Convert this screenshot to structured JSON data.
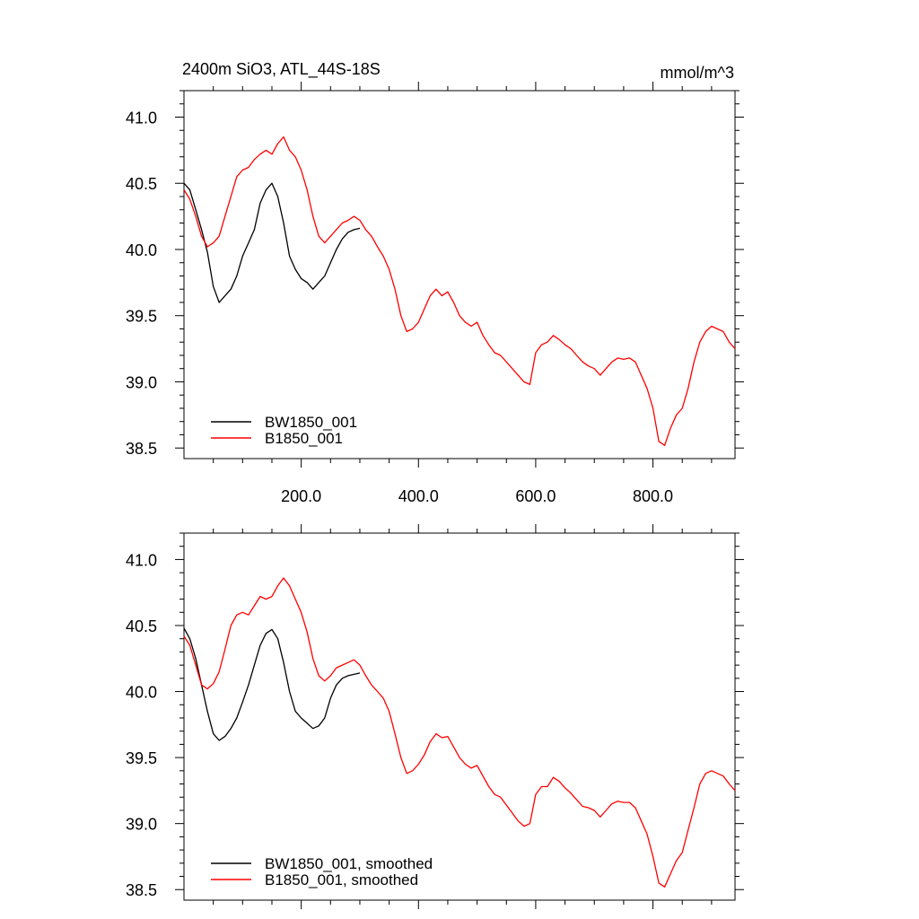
{
  "colors": {
    "series_0": "#000000",
    "series_1": "#ff0000"
  },
  "chart_data": [
    {
      "type": "line",
      "title": "2400m SiO3, ATL_44S-18S",
      "units": "mmol/m^3",
      "xlim": [
        0,
        940
      ],
      "ylim": [
        38.42,
        41.2
      ],
      "xticks": [
        200,
        400,
        600,
        800
      ],
      "xtick_labels": [
        "200.0",
        "400.0",
        "600.0",
        "800.0"
      ],
      "yticks": [
        38.5,
        39.0,
        39.5,
        40.0,
        40.5,
        41.0
      ],
      "ytick_labels": [
        "38.5",
        "39.0",
        "39.5",
        "40.0",
        "40.5",
        "41.0"
      ],
      "legend_position": "bottom-left",
      "series": [
        {
          "name": "BW1850_001",
          "x": [
            0,
            10,
            20,
            30,
            40,
            50,
            60,
            70,
            80,
            90,
            100,
            110,
            120,
            130,
            140,
            150,
            160,
            170,
            180,
            190,
            200,
            210,
            220,
            230,
            240,
            250,
            260,
            270,
            280,
            290,
            300
          ],
          "y": [
            40.5,
            40.45,
            40.3,
            40.15,
            39.98,
            39.72,
            39.6,
            39.65,
            39.7,
            39.8,
            39.95,
            40.05,
            40.15,
            40.35,
            40.45,
            40.5,
            40.4,
            40.2,
            39.95,
            39.85,
            39.78,
            39.75,
            39.7,
            39.75,
            39.8,
            39.9,
            40.0,
            40.08,
            40.13,
            40.15,
            40.16
          ]
        },
        {
          "name": "B1850_001",
          "x": [
            0,
            10,
            20,
            30,
            40,
            50,
            60,
            70,
            80,
            90,
            100,
            110,
            120,
            130,
            140,
            150,
            160,
            170,
            180,
            190,
            200,
            210,
            220,
            230,
            240,
            250,
            260,
            270,
            280,
            290,
            300,
            310,
            320,
            330,
            340,
            350,
            360,
            370,
            380,
            390,
            400,
            410,
            420,
            430,
            440,
            450,
            460,
            470,
            480,
            490,
            500,
            510,
            520,
            530,
            540,
            550,
            560,
            570,
            580,
            590,
            600,
            610,
            620,
            630,
            640,
            650,
            660,
            670,
            680,
            690,
            700,
            710,
            720,
            730,
            740,
            750,
            760,
            770,
            780,
            790,
            800,
            810,
            820,
            830,
            840,
            850,
            860,
            870,
            880,
            890,
            900,
            910,
            920,
            930,
            940
          ],
          "y": [
            40.45,
            40.38,
            40.25,
            40.1,
            40.02,
            40.05,
            40.1,
            40.25,
            40.4,
            40.55,
            40.6,
            40.62,
            40.68,
            40.72,
            40.75,
            40.72,
            40.8,
            40.85,
            40.75,
            40.7,
            40.6,
            40.45,
            40.25,
            40.1,
            40.05,
            40.1,
            40.15,
            40.2,
            40.22,
            40.25,
            40.22,
            40.15,
            40.1,
            40.02,
            39.95,
            39.85,
            39.7,
            39.5,
            39.38,
            39.4,
            39.45,
            39.55,
            39.65,
            39.7,
            39.65,
            39.68,
            39.6,
            39.5,
            39.45,
            39.42,
            39.45,
            39.35,
            39.28,
            39.22,
            39.2,
            39.15,
            39.1,
            39.05,
            39.0,
            38.98,
            39.22,
            39.28,
            39.3,
            39.35,
            39.32,
            39.28,
            39.25,
            39.2,
            39.15,
            39.12,
            39.1,
            39.05,
            39.1,
            39.15,
            39.18,
            39.17,
            39.18,
            39.15,
            39.05,
            38.95,
            38.8,
            38.55,
            38.52,
            38.65,
            38.75,
            38.8,
            38.95,
            39.15,
            39.3,
            39.38,
            39.42,
            39.4,
            39.38,
            39.3,
            39.25
          ]
        }
      ]
    },
    {
      "type": "line",
      "xlim": [
        0,
        940
      ],
      "ylim": [
        38.42,
        41.2
      ],
      "xticks": [
        200,
        400,
        600,
        800
      ],
      "yticks": [
        38.5,
        39.0,
        39.5,
        40.0,
        40.5,
        41.0
      ],
      "ytick_labels": [
        "38.5",
        "39.0",
        "39.5",
        "40.0",
        "40.5",
        "41.0"
      ],
      "legend_position": "bottom-left",
      "series": [
        {
          "name": "BW1850_001, smoothed",
          "x": [
            0,
            10,
            20,
            30,
            40,
            50,
            60,
            70,
            80,
            90,
            100,
            110,
            120,
            130,
            140,
            150,
            160,
            170,
            180,
            190,
            200,
            210,
            220,
            230,
            240,
            250,
            260,
            270,
            280,
            290,
            300
          ],
          "y": [
            40.48,
            40.4,
            40.25,
            40.05,
            39.85,
            39.68,
            39.63,
            39.66,
            39.72,
            39.8,
            39.92,
            40.05,
            40.2,
            40.35,
            40.44,
            40.47,
            40.4,
            40.22,
            40.0,
            39.85,
            39.8,
            39.76,
            39.72,
            39.74,
            39.8,
            39.95,
            40.05,
            40.1,
            40.12,
            40.13,
            40.14
          ]
        },
        {
          "name": "B1850_001, smoothed",
          "x": [
            0,
            10,
            20,
            30,
            40,
            50,
            60,
            70,
            80,
            90,
            100,
            110,
            120,
            130,
            140,
            150,
            160,
            170,
            180,
            190,
            200,
            210,
            220,
            230,
            240,
            250,
            260,
            270,
            280,
            290,
            300,
            310,
            320,
            330,
            340,
            350,
            360,
            370,
            380,
            390,
            400,
            410,
            420,
            430,
            440,
            450,
            460,
            470,
            480,
            490,
            500,
            510,
            520,
            530,
            540,
            550,
            560,
            570,
            580,
            590,
            600,
            610,
            620,
            630,
            640,
            650,
            660,
            670,
            680,
            690,
            700,
            710,
            720,
            730,
            740,
            750,
            760,
            770,
            780,
            790,
            800,
            810,
            820,
            830,
            840,
            850,
            860,
            870,
            880,
            890,
            900,
            910,
            920,
            930,
            940
          ],
          "y": [
            40.42,
            40.35,
            40.2,
            40.05,
            40.02,
            40.06,
            40.15,
            40.32,
            40.5,
            40.58,
            40.6,
            40.58,
            40.65,
            40.72,
            40.7,
            40.72,
            40.8,
            40.86,
            40.8,
            40.7,
            40.6,
            40.45,
            40.25,
            40.12,
            40.08,
            40.12,
            40.18,
            40.2,
            40.22,
            40.24,
            40.2,
            40.12,
            40.05,
            40.0,
            39.95,
            39.85,
            39.68,
            39.5,
            39.38,
            39.4,
            39.45,
            39.52,
            39.62,
            39.68,
            39.65,
            39.66,
            39.58,
            39.5,
            39.45,
            39.42,
            39.44,
            39.36,
            39.28,
            39.22,
            39.2,
            39.14,
            39.08,
            39.02,
            38.98,
            39.0,
            39.22,
            39.28,
            39.28,
            39.35,
            39.32,
            39.27,
            39.23,
            39.18,
            39.13,
            39.12,
            39.1,
            39.05,
            39.1,
            39.15,
            39.17,
            39.16,
            39.16,
            39.12,
            39.02,
            38.92,
            38.75,
            38.55,
            38.52,
            38.62,
            38.72,
            38.78,
            38.95,
            39.12,
            39.3,
            39.38,
            39.4,
            39.38,
            39.36,
            39.3,
            39.25
          ]
        }
      ]
    }
  ]
}
